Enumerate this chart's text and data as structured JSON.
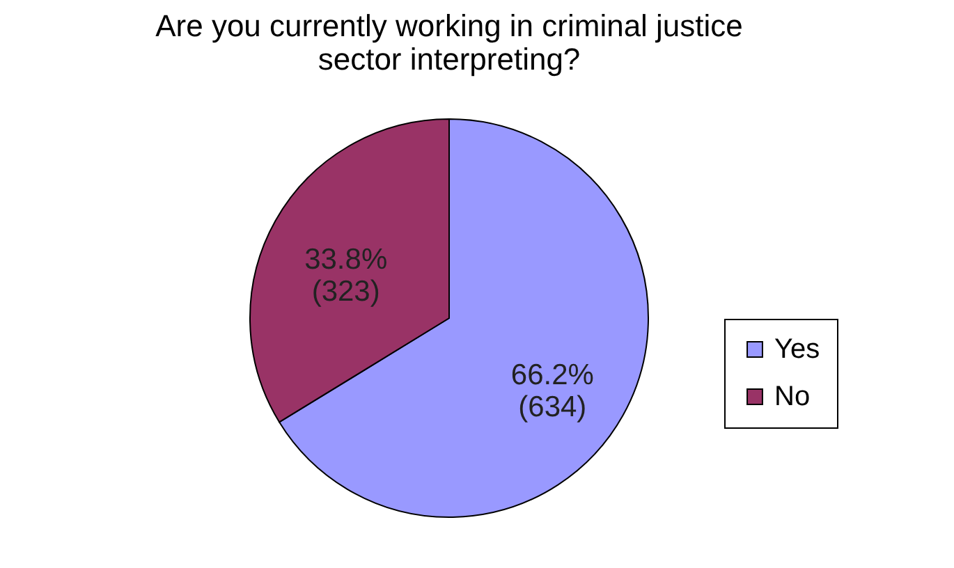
{
  "chart_data": {
    "type": "pie",
    "title": "Are you currently working in criminal justice sector interpreting?",
    "categories": [
      "Yes",
      "No"
    ],
    "values": [
      634,
      323
    ],
    "colors": [
      "#9999ff",
      "#993366"
    ],
    "value_labels": [
      "66.2%\n(634)",
      "33.8%\n(323)"
    ],
    "legend": "right"
  }
}
